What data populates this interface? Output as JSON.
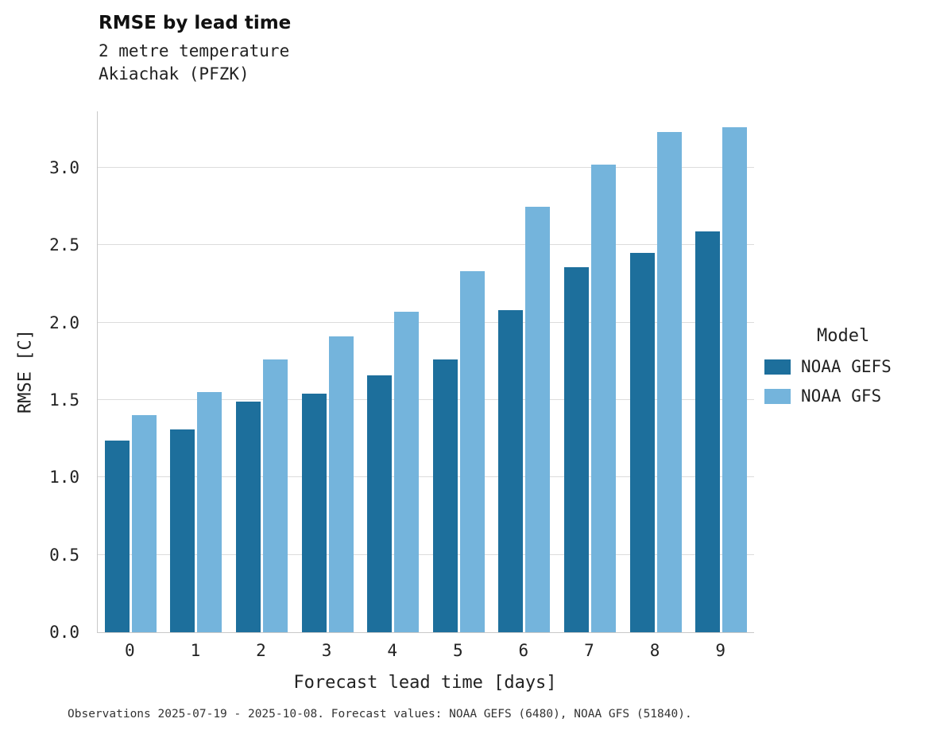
{
  "header": {
    "title": "RMSE by lead time",
    "subtitle_line1": "2 metre temperature",
    "subtitle_line2": "Akiachak (PFZK)"
  },
  "caption": "Observations 2025-07-19 - 2025-10-08. Forecast values: NOAA GEFS (6480), NOAA GFS (51840).",
  "legend": {
    "title": "Model",
    "entries": [
      {
        "label": "NOAA GEFS",
        "color": "#1d6f9c"
      },
      {
        "label": "NOAA GFS",
        "color": "#74b4dc"
      }
    ]
  },
  "chart_data": {
    "type": "bar",
    "title": "RMSE by lead time",
    "subtitle": "2 metre temperature — Akiachak (PFZK)",
    "xlabel": "Forecast lead time [days]",
    "ylabel": "RMSE [C]",
    "categories": [
      "0",
      "1",
      "2",
      "3",
      "4",
      "5",
      "6",
      "7",
      "8",
      "9"
    ],
    "series": [
      {
        "name": "NOAA GEFS",
        "color": "#1d6f9c",
        "values": [
          1.24,
          1.31,
          1.49,
          1.54,
          1.66,
          1.76,
          2.08,
          2.36,
          2.45,
          2.59
        ]
      },
      {
        "name": "NOAA GFS",
        "color": "#74b4dc",
        "values": [
          1.4,
          1.55,
          1.76,
          1.91,
          2.07,
          2.33,
          2.75,
          3.02,
          3.23,
          3.26
        ]
      }
    ],
    "ylim": [
      0,
      3.365
    ],
    "yticks": [
      0.0,
      0.5,
      1.0,
      1.5,
      2.0,
      2.5,
      3.0
    ],
    "grid": true,
    "legend_position": "right"
  }
}
